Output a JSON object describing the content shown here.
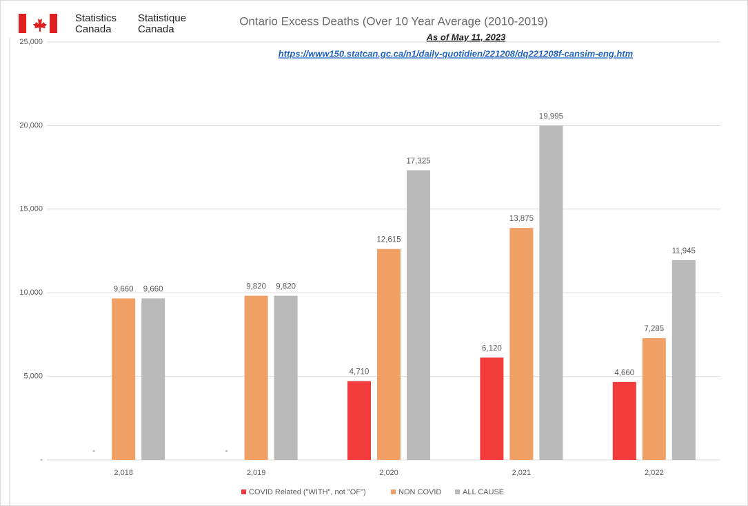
{
  "logo": {
    "english": [
      "Statistics",
      "Canada"
    ],
    "french": [
      "Statistique",
      "Canada"
    ]
  },
  "chart_data": {
    "type": "bar",
    "title": "Ontario Excess Deaths (Over 10 Year Average (2010-2019)",
    "subtitle": "As of May 11, 2023",
    "source": "https://www150.statcan.gc.ca/n1/daily-quotidien/221208/dq221208f-cansim-eng.htm",
    "categories": [
      "2,018",
      "2,019",
      "2,020",
      "2,021",
      "2,022"
    ],
    "series": [
      {
        "name": "COVID Related (\"WITH\", not \"OF\")",
        "color": "#f23c3c",
        "values": [
          0,
          0,
          4710,
          6120,
          4660
        ],
        "value_labels": [
          "-",
          "-",
          "4,710",
          "6,120",
          "4,660"
        ]
      },
      {
        "name": "NON COVID",
        "color": "#f0a064",
        "values": [
          9660,
          9820,
          12615,
          13875,
          7285
        ],
        "value_labels": [
          "9,660",
          "9,820",
          "12,615",
          "13,875",
          "7,285"
        ]
      },
      {
        "name": "ALL CAUSE",
        "color": "#b9b9b9",
        "values": [
          9660,
          9820,
          17325,
          19995,
          11945
        ],
        "value_labels": [
          "9,660",
          "9,820",
          "17,325",
          "19,995",
          "11,945"
        ]
      }
    ],
    "ylim": [
      0,
      25000
    ],
    "yticks": [
      {
        "value": 0,
        "label": "-"
      },
      {
        "value": 5000,
        "label": "5,000"
      },
      {
        "value": 10000,
        "label": "10,000"
      },
      {
        "value": 15000,
        "label": "15,000"
      },
      {
        "value": 20000,
        "label": "20,000"
      },
      {
        "value": 25000,
        "label": "25,000"
      }
    ],
    "grid": true,
    "legend": "bottom"
  }
}
